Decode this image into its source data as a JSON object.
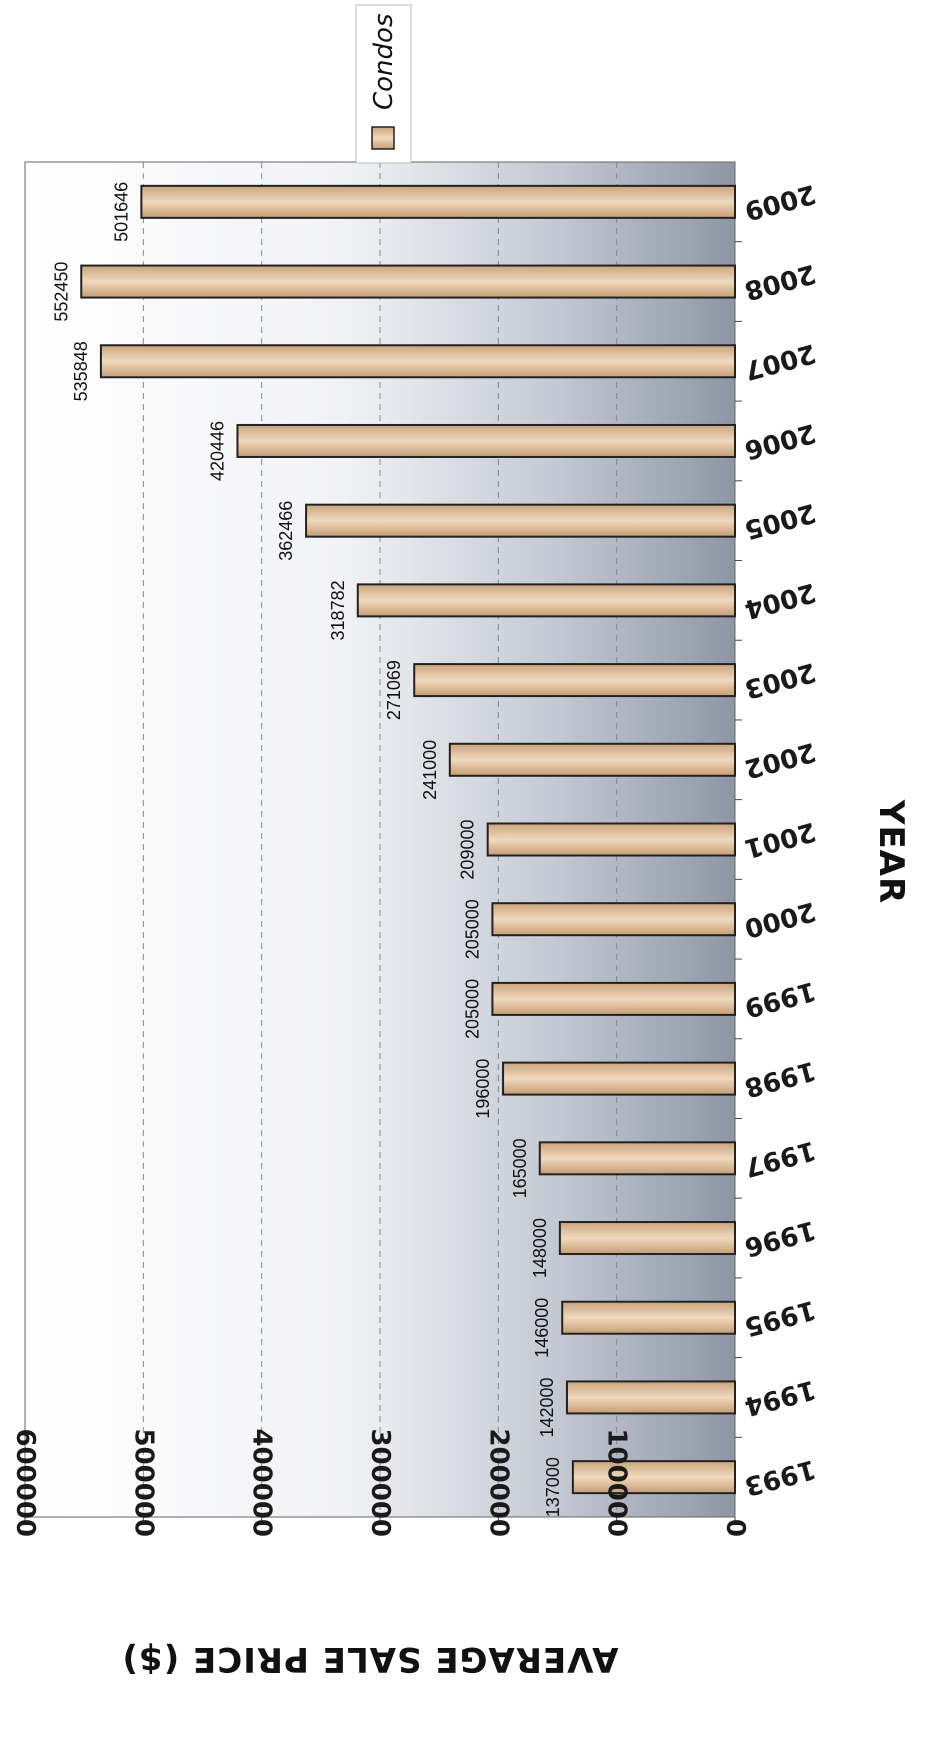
{
  "chart_data": {
    "type": "bar",
    "orientation": "rotated-90-clockwise",
    "categories": [
      "1993",
      "1994",
      "1995",
      "1996",
      "1997",
      "1998",
      "1999",
      "2000",
      "2001",
      "2002",
      "2003",
      "2004",
      "2005",
      "2006",
      "2007",
      "2008",
      "2009"
    ],
    "series": [
      {
        "name": "Condos",
        "values": [
          137000,
          142000,
          146000,
          148000,
          165000,
          196000,
          205000,
          205000,
          209000,
          241000,
          271069,
          318782,
          362466,
          420446,
          535848,
          552450,
          501646
        ],
        "data_labels": [
          "137000",
          "142000",
          "146000",
          "148000",
          "165000",
          "196000",
          "205000",
          "205000",
          "209000",
          "241000",
          "271069",
          "318782",
          "362466",
          "420446",
          "535848",
          "552450",
          "501646"
        ]
      }
    ],
    "xlabel": "YEAR",
    "ylabel": "AVERAGE SALE PRICE ($)",
    "ylim": [
      0,
      600000
    ],
    "yticks": [
      "0",
      "100000",
      "200000",
      "300000",
      "400000",
      "500000",
      "600000"
    ],
    "grid": true,
    "legend": "top-right",
    "colors": {
      "bar": "#d9b895",
      "bar_edge": "#222222",
      "plot_bg_light": "#ffffff",
      "plot_bg_dark": "#8b93a3",
      "grid": "#888888"
    }
  }
}
